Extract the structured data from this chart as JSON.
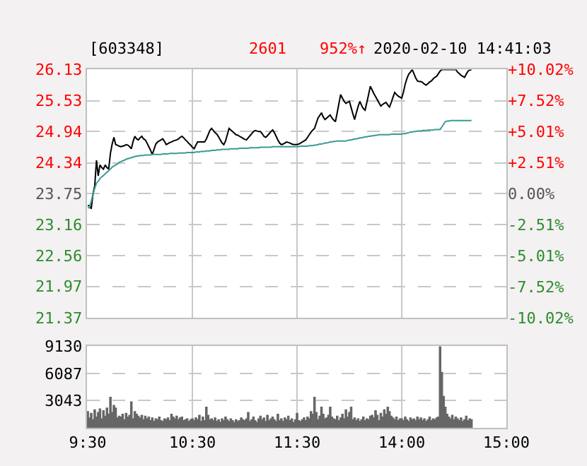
{
  "chart_data": [
    {
      "type": "line",
      "title": "[603348]",
      "annotations": [
        "2601",
        "952%↑",
        "2020-02-10 14:41:03"
      ],
      "categories": [
        null,
        null,
        null,
        null,
        null,
        null,
        null,
        null,
        null,
        null,
        null,
        null,
        null,
        null,
        null,
        null,
        null,
        null,
        null,
        null,
        null,
        null,
        null,
        null,
        null,
        null,
        null,
        null,
        null,
        null,
        null,
        null,
        null,
        null,
        null,
        null,
        null,
        null,
        null,
        null,
        null,
        null,
        null,
        null,
        null,
        null,
        null,
        null,
        null,
        null,
        null,
        null,
        null,
        null,
        null,
        null,
        null,
        null,
        null,
        null,
        null,
        null,
        null,
        null,
        null,
        null,
        null,
        null,
        null,
        null,
        null,
        null,
        null,
        null,
        null,
        null,
        null,
        null,
        null,
        null,
        null,
        null,
        null,
        null,
        null,
        null,
        null,
        null,
        null,
        null,
        null,
        null,
        null,
        null,
        null,
        null,
        null,
        null,
        null,
        null,
        null,
        null,
        null,
        null,
        null,
        null,
        null,
        null,
        null,
        null,
        null,
        null,
        null,
        null,
        null,
        null,
        null,
        null,
        null,
        null,
        null,
        null,
        null,
        null,
        null,
        null,
        null,
        null,
        null,
        null,
        null,
        null,
        null,
        null,
        null,
        null,
        null,
        null,
        null,
        null,
        null,
        null,
        null,
        null,
        null,
        null,
        null,
        null,
        null,
        null,
        null,
        null,
        null,
        null,
        null,
        null,
        null,
        null,
        null,
        null,
        null,
        null,
        null,
        null,
        null,
        null,
        null,
        null,
        null,
        null,
        null,
        null,
        null,
        null,
        null,
        null,
        null,
        null,
        null,
        null,
        null,
        null,
        null,
        null,
        null,
        null,
        null,
        null,
        null,
        null,
        null,
        null,
        null,
        null,
        null,
        null,
        null,
        null,
        null,
        null,
        null,
        null,
        null,
        null,
        null,
        null,
        null,
        null,
        null,
        null,
        null,
        null,
        null,
        null,
        null,
        null,
        null,
        null,
        null,
        null,
        null,
        null,
        null,
        null,
        null,
        null,
        null,
        null,
        null,
        null,
        null,
        null,
        null,
        null,
        null,
        null,
        null,
        null,
        null,
        null,
        null
      ],
      "series": [
        {
          "color": "#000000",
          "values": [
            23.52,
            23.52,
            23.46,
            23.74,
            23.9,
            24.39,
            24.09,
            24.3,
            24.25,
            24.22,
            24.3,
            24.25,
            24.22,
            24.52,
            24.7,
            24.83,
            24.69,
            24.68,
            24.66,
            24.65,
            24.66,
            24.67,
            24.69,
            24.68,
            24.65,
            24.61,
            24.75,
            24.85,
            24.8,
            24.78,
            24.82,
            24.85,
            24.8,
            24.78,
            24.72,
            24.65,
            24.58,
            24.5,
            24.6,
            24.7,
            24.74,
            24.76,
            24.78,
            24.8,
            24.75,
            24.69,
            24.71,
            24.73,
            24.74,
            24.76,
            24.77,
            24.78,
            24.8,
            24.83,
            24.85,
            24.82,
            24.78,
            24.75,
            24.71,
            24.68,
            24.64,
            24.61,
            24.68,
            24.74,
            24.74,
            24.74,
            24.74,
            24.74,
            24.8,
            24.88,
            24.96,
            25.0,
            24.96,
            24.92,
            24.89,
            24.84,
            24.78,
            24.72,
            24.69,
            24.76,
            24.88,
            25.0,
            24.97,
            24.94,
            24.91,
            24.88,
            24.87,
            24.85,
            24.83,
            24.81,
            24.79,
            24.78,
            24.82,
            24.86,
            24.9,
            24.94,
            24.96,
            24.95,
            24.94,
            24.94,
            24.9,
            24.85,
            24.83,
            24.86,
            24.9,
            24.94,
            24.97,
            24.92,
            24.85,
            24.78,
            24.72,
            24.69,
            24.7,
            24.72,
            24.74,
            24.73,
            24.72,
            24.7,
            24.69,
            24.69,
            24.69,
            24.7,
            24.72,
            24.74,
            24.76,
            24.78,
            24.83,
            24.88,
            24.93,
            24.97,
            25.0,
            25.1,
            25.2,
            25.25,
            25.3,
            25.22,
            25.17,
            25.2,
            25.23,
            25.26,
            25.2,
            25.16,
            25.13,
            25.3,
            25.48,
            25.65,
            25.58,
            25.52,
            25.48,
            25.5,
            25.52,
            25.4,
            25.28,
            25.17,
            25.3,
            25.42,
            25.52,
            25.44,
            25.38,
            25.35,
            25.5,
            25.65,
            25.81,
            25.74,
            25.67,
            25.61,
            25.55,
            25.49,
            25.43,
            25.46,
            25.48,
            25.5,
            25.45,
            25.41,
            25.5,
            25.6,
            25.69,
            25.65,
            25.62,
            25.6,
            25.58,
            25.7,
            25.85,
            25.96,
            26.04,
            26.08,
            26.13,
            26.05,
            25.97,
            25.91,
            25.9,
            25.9,
            25.88,
            25.85,
            25.83,
            25.86,
            25.89,
            25.91,
            25.95,
            25.98,
            26.0,
            26.05,
            26.1,
            26.13,
            26.13,
            26.13,
            26.13,
            26.13,
            26.13,
            26.13,
            26.13,
            26.13,
            26.08,
            26.05,
            26.02,
            26.0,
            25.98,
            26.04,
            26.1,
            26.12,
            26.13,
            null,
            null,
            null,
            null,
            null,
            null,
            null,
            null,
            null,
            null,
            null,
            null,
            null,
            null,
            null,
            null,
            null,
            null,
            null,
            null
          ]
        },
        {
          "color": "#3a9a92",
          "values": [
            23.48,
            23.48,
            23.6,
            23.74,
            23.85,
            23.95,
            23.99,
            24.04,
            24.07,
            24.1,
            24.13,
            24.16,
            24.19,
            24.22,
            24.26,
            24.28,
            24.3,
            24.32,
            24.35,
            24.36,
            24.38,
            24.39,
            24.41,
            24.42,
            24.43,
            24.44,
            24.45,
            24.46,
            24.47,
            24.47,
            24.48,
            24.48,
            24.48,
            24.49,
            24.49,
            24.49,
            24.49,
            24.5,
            24.5,
            24.5,
            24.5,
            24.5,
            24.5,
            24.51,
            24.51,
            24.51,
            24.51,
            24.52,
            24.52,
            24.52,
            24.52,
            24.52,
            24.53,
            24.53,
            24.53,
            24.53,
            24.53,
            24.54,
            24.54,
            24.54,
            24.54,
            24.54,
            24.55,
            24.55,
            24.55,
            24.56,
            24.56,
            24.56,
            24.57,
            24.57,
            24.57,
            24.58,
            24.58,
            24.58,
            24.59,
            24.59,
            24.59,
            24.6,
            24.6,
            24.6,
            24.6,
            24.6,
            24.61,
            24.61,
            24.61,
            24.61,
            24.61,
            24.62,
            24.62,
            24.62,
            24.62,
            24.62,
            24.62,
            24.63,
            24.63,
            24.63,
            24.63,
            24.63,
            24.63,
            24.64,
            24.64,
            24.64,
            24.64,
            24.64,
            24.64,
            24.64,
            24.65,
            24.65,
            24.65,
            24.65,
            24.65,
            24.65,
            24.65,
            24.65,
            24.65,
            24.65,
            24.65,
            24.65,
            24.65,
            24.65,
            24.65,
            24.65,
            24.66,
            24.66,
            24.66,
            24.66,
            24.66,
            24.67,
            24.67,
            24.67,
            24.68,
            24.68,
            24.69,
            24.7,
            24.7,
            24.71,
            24.72,
            24.72,
            24.73,
            24.74,
            24.74,
            24.75,
            24.75,
            24.76,
            24.76,
            24.76,
            24.76,
            24.76,
            24.76,
            24.77,
            24.78,
            24.78,
            24.79,
            24.8,
            24.8,
            24.81,
            24.82,
            24.82,
            24.83,
            24.84,
            24.84,
            24.85,
            24.85,
            24.86,
            24.86,
            24.87,
            24.87,
            24.88,
            24.88,
            24.88,
            24.88,
            24.88,
            24.88,
            24.88,
            24.89,
            24.89,
            24.89,
            24.89,
            24.89,
            24.89,
            24.89,
            24.9,
            24.9,
            24.91,
            24.92,
            24.93,
            24.93,
            24.94,
            24.94,
            24.95,
            24.95,
            24.95,
            24.96,
            24.96,
            24.96,
            24.97,
            24.97,
            24.97,
            24.97,
            24.98,
            24.98,
            24.98,
            24.98,
            25.03,
            25.08,
            25.13,
            25.14,
            25.14,
            25.15,
            25.15,
            25.15,
            25.15,
            25.15,
            25.15,
            25.15,
            25.15,
            25.15,
            25.15,
            25.15,
            25.15,
            25.15,
            null,
            null,
            null,
            null,
            null,
            null,
            null,
            null,
            null,
            null,
            null,
            null,
            null,
            null,
            null,
            null,
            null,
            null,
            null,
            null
          ]
        }
      ],
      "ylim": [
        21.37,
        26.13
      ],
      "yticks": [
        21.37,
        21.97,
        22.56,
        23.16,
        23.75,
        24.34,
        24.94,
        25.53,
        26.13
      ],
      "y2lim": [
        -10.02,
        10.02
      ],
      "y2ticks": [
        {
          "value": -10.02,
          "label": "-10.02%"
        },
        {
          "value": -7.52,
          "label": "-7.52%"
        },
        {
          "value": -5.01,
          "label": "-5.01%"
        },
        {
          "value": -2.51,
          "label": "-2.51%"
        },
        {
          "value": 0,
          "label": "0.00%"
        },
        {
          "value": 2.51,
          "label": "+2.51%"
        },
        {
          "value": 5.01,
          "label": "+5.01%"
        },
        {
          "value": 7.52,
          "label": "+7.52%"
        },
        {
          "value": 10.02,
          "label": "+10.02%"
        }
      ],
      "tick_labels": "y",
      "grid": true,
      "line_style": "solid",
      "marker": "none"
    },
    {
      "type": "bar",
      "color": "#666666",
      "categories": [
        "9:30",
        null,
        null,
        null,
        null,
        null,
        null,
        null,
        null,
        null,
        null,
        null,
        null,
        null,
        null,
        null,
        null,
        null,
        null,
        null,
        null,
        null,
        null,
        null,
        null,
        null,
        null,
        null,
        null,
        null,
        null,
        null,
        null,
        null,
        null,
        null,
        null,
        null,
        null,
        null,
        null,
        null,
        null,
        null,
        null,
        null,
        null,
        null,
        null,
        null,
        null,
        null,
        null,
        null,
        null,
        null,
        null,
        null,
        null,
        null,
        "10:30",
        null,
        null,
        null,
        null,
        null,
        null,
        null,
        null,
        null,
        null,
        null,
        null,
        null,
        null,
        null,
        null,
        null,
        null,
        null,
        null,
        null,
        null,
        null,
        null,
        null,
        null,
        null,
        null,
        null,
        null,
        null,
        null,
        null,
        null,
        null,
        null,
        null,
        null,
        null,
        null,
        null,
        null,
        null,
        null,
        null,
        null,
        null,
        null,
        null,
        null,
        null,
        null,
        null,
        null,
        null,
        null,
        null,
        null,
        null,
        "11:30",
        null,
        null,
        null,
        null,
        null,
        null,
        null,
        null,
        null,
        null,
        null,
        null,
        null,
        null,
        null,
        null,
        null,
        null,
        null,
        null,
        null,
        null,
        null,
        null,
        null,
        null,
        null,
        null,
        null,
        null,
        null,
        null,
        null,
        null,
        null,
        null,
        null,
        null,
        null,
        null,
        null,
        null,
        null,
        null,
        null,
        null,
        null,
        null,
        null,
        null,
        null,
        null,
        null,
        null,
        null,
        null,
        null,
        null,
        null,
        "14:00",
        null,
        null,
        null,
        null,
        null,
        null,
        null,
        null,
        null,
        null,
        null,
        null,
        null,
        null,
        null,
        null,
        null,
        null,
        null,
        null,
        null,
        null,
        null,
        null,
        null,
        null,
        null,
        null,
        null,
        null,
        null,
        null,
        null,
        null,
        null,
        null,
        null,
        null,
        null,
        null,
        null,
        null,
        null,
        null,
        null,
        null,
        null,
        null,
        null,
        null,
        null,
        null,
        null,
        null,
        null,
        null,
        null,
        null,
        null,
        "15:00"
      ],
      "values": [
        1800,
        1100,
        1600,
        900,
        2000,
        1200,
        1700,
        2100,
        1000,
        1900,
        1300,
        2200,
        1500,
        3400,
        1700,
        2500,
        2200,
        1100,
        1300,
        1200,
        1500,
        900,
        1600,
        1200,
        1400,
        2900,
        1000,
        1800,
        1500,
        1300,
        1100,
        1400,
        900,
        1300,
        1000,
        1200,
        800,
        1100,
        700,
        1000,
        900,
        1200,
        800,
        700,
        1000,
        900,
        1100,
        800,
        1500,
        1200,
        1000,
        1300,
        900,
        1100,
        1200,
        800,
        900,
        1000,
        700,
        900,
        1000,
        800,
        1100,
        900,
        1400,
        700,
        1200,
        800,
        2300,
        1400,
        900,
        1000,
        800,
        1100,
        700,
        900,
        600,
        1000,
        800,
        1200,
        900,
        700,
        1000,
        800,
        600,
        900,
        700,
        800,
        1100,
        900,
        800,
        1000,
        1700,
        700,
        900,
        1200,
        800,
        600,
        1000,
        1300,
        900,
        1100,
        700,
        1400,
        800,
        1000,
        1200,
        900,
        700,
        1500,
        800,
        1000,
        700,
        1100,
        900,
        1300,
        800,
        1000,
        600,
        900,
        1600,
        800,
        700,
        900,
        1100,
        800,
        1200,
        1000,
        1800,
        1500,
        3400,
        1700,
        900,
        1300,
        2300,
        1500,
        1000,
        1100,
        1400,
        2300,
        1200,
        1000,
        900,
        1300,
        800,
        1100,
        1500,
        1000,
        2000,
        1200,
        1700,
        2300,
        900,
        1100,
        800,
        1000,
        700,
        900,
        1200,
        800,
        1000,
        900,
        1300,
        1400,
        1100,
        1900,
        1400,
        800,
        1600,
        1200,
        2000,
        1500,
        2300,
        1800,
        1300,
        1100,
        900,
        1200,
        800,
        1000,
        1000,
        800,
        1200,
        900,
        700,
        1100,
        900,
        1000,
        800,
        1200,
        900,
        1100,
        800,
        1000,
        700,
        900,
        1200,
        800,
        1000,
        900,
        1100,
        1200,
        9100,
        6200,
        3500,
        2300,
        1500,
        1200,
        1000,
        1400,
        900,
        1200,
        1000,
        800,
        1100,
        700,
        900,
        1300,
        800,
        1000,
        900,
        null,
        null,
        null,
        null,
        null,
        null,
        null,
        null,
        null,
        null,
        null,
        null,
        null,
        null,
        null,
        null,
        null,
        null,
        null,
        null
      ],
      "ylim": [
        0,
        9130
      ],
      "yticks": [
        {
          "value": 0,
          "label": null
        },
        3043,
        6087,
        9130
      ],
      "grid": true
    }
  ]
}
